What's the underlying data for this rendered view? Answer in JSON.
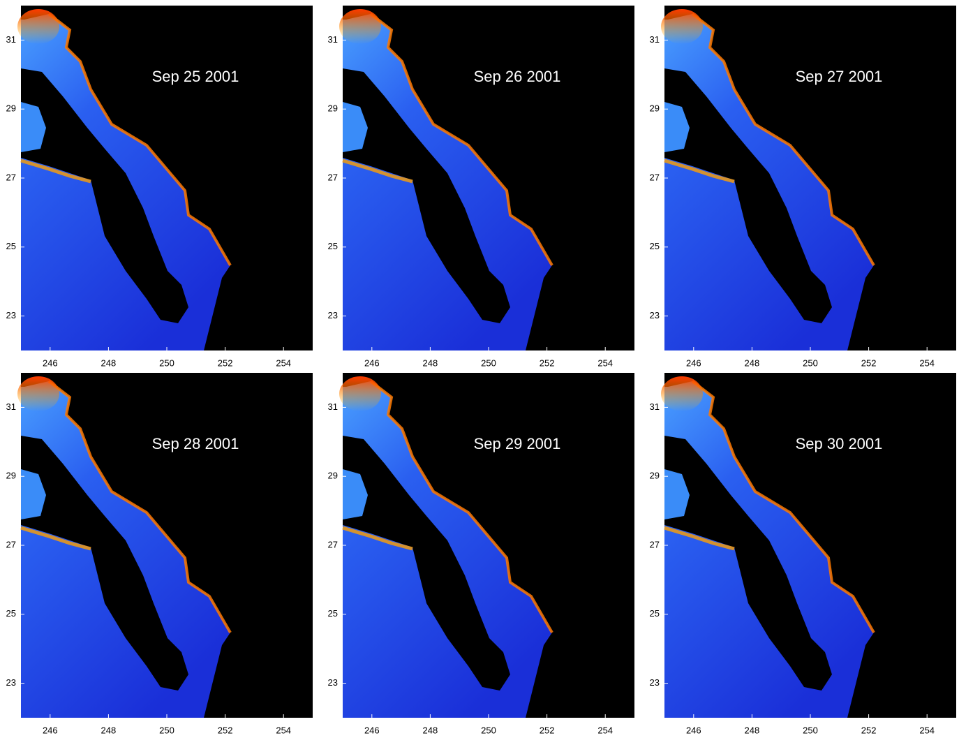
{
  "panels": [
    {
      "title": "Sep 25 2001"
    },
    {
      "title": "Sep 26 2001"
    },
    {
      "title": "Sep 27 2001"
    },
    {
      "title": "Sep 28 2001"
    },
    {
      "title": "Sep 29 2001"
    },
    {
      "title": "Sep 30 2001"
    }
  ],
  "xlim": [
    245,
    255
  ],
  "ylim": [
    22,
    32
  ],
  "xticks": [
    246,
    248,
    250,
    252,
    254
  ],
  "yticks": [
    23,
    25,
    27,
    29,
    31
  ]
}
